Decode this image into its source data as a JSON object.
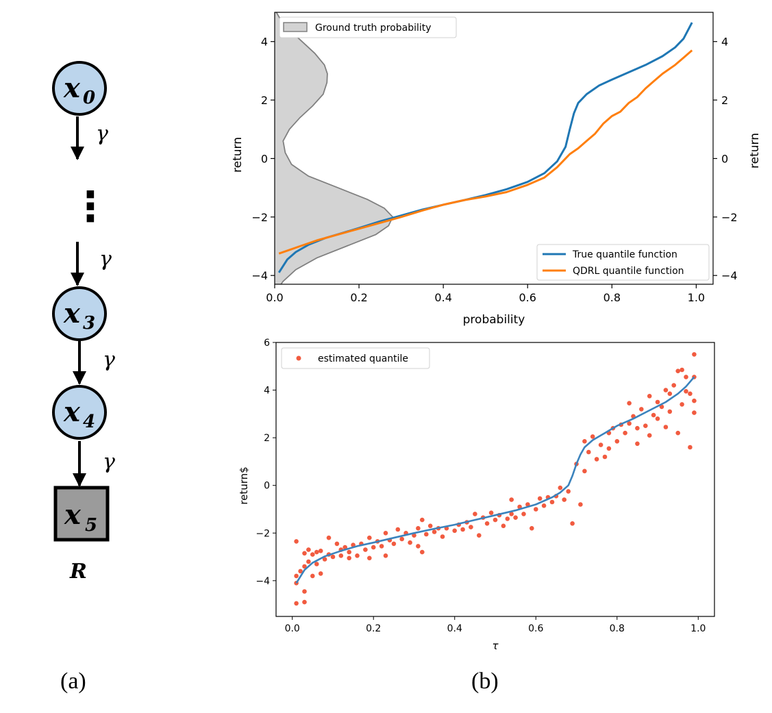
{
  "diagram": {
    "nodes": [
      {
        "var": "x",
        "sub": "0",
        "shape": "circle"
      },
      {
        "var": "x",
        "sub": "3",
        "shape": "circle"
      },
      {
        "var": "x",
        "sub": "4",
        "shape": "circle"
      },
      {
        "var": "x",
        "sub": "5",
        "shape": "square"
      }
    ],
    "edge_label": "γ",
    "ellipsis": "⋮",
    "terminal_label": "R",
    "node_fill": "#bcd5ec",
    "terminal_fill": "#9b9b9b"
  },
  "panel_labels": {
    "a": "(a)",
    "b": "(b)"
  },
  "chart_data": [
    {
      "type": "line",
      "xlabel": "probability",
      "ylabel": "return",
      "ylabel_right": "return",
      "xlim": [
        0.0,
        1.04
      ],
      "ylim": [
        -4.3,
        5.0
      ],
      "xticks": [
        "0.0",
        "0.2",
        "0.4",
        "0.6",
        "0.8",
        "1.0"
      ],
      "yticks": [
        "−4",
        "−2",
        "0",
        "2",
        "4"
      ],
      "yticks_right": [
        "−4",
        "−2",
        "0",
        "2",
        "4"
      ],
      "legend_position": "lower right",
      "series": [
        {
          "name": "True quantile function",
          "color": "#1f77b4",
          "x": [
            0.01,
            0.03,
            0.05,
            0.08,
            0.12,
            0.16,
            0.2,
            0.25,
            0.3,
            0.35,
            0.4,
            0.45,
            0.5,
            0.55,
            0.6,
            0.64,
            0.67,
            0.69,
            0.7,
            0.71,
            0.72,
            0.74,
            0.77,
            0.8,
            0.84,
            0.88,
            0.92,
            0.95,
            0.97,
            0.99
          ],
          "y": [
            -3.9,
            -3.45,
            -3.2,
            -2.95,
            -2.72,
            -2.55,
            -2.38,
            -2.15,
            -1.95,
            -1.75,
            -1.58,
            -1.42,
            -1.25,
            -1.05,
            -0.8,
            -0.5,
            -0.1,
            0.4,
            1.0,
            1.55,
            1.9,
            2.2,
            2.5,
            2.7,
            2.95,
            3.2,
            3.5,
            3.8,
            4.1,
            4.65
          ]
        },
        {
          "name": "QDRL quantile function",
          "color": "#ff7f0e",
          "x": [
            0.01,
            0.03,
            0.06,
            0.1,
            0.15,
            0.2,
            0.25,
            0.3,
            0.35,
            0.4,
            0.45,
            0.5,
            0.55,
            0.6,
            0.64,
            0.67,
            0.69,
            0.7,
            0.72,
            0.74,
            0.76,
            0.78,
            0.8,
            0.82,
            0.84,
            0.86,
            0.88,
            0.9,
            0.92,
            0.95,
            0.97,
            0.99
          ],
          "y": [
            -3.25,
            -3.15,
            -3.0,
            -2.8,
            -2.6,
            -2.4,
            -2.2,
            -2.0,
            -1.78,
            -1.58,
            -1.42,
            -1.3,
            -1.15,
            -0.9,
            -0.65,
            -0.3,
            0.0,
            0.15,
            0.35,
            0.6,
            0.85,
            1.2,
            1.45,
            1.6,
            1.9,
            2.1,
            2.4,
            2.65,
            2.9,
            3.2,
            3.45,
            3.7
          ]
        }
      ],
      "density": {
        "name": "Ground truth probability",
        "fill": "#d3d3d3",
        "stroke": "#808080",
        "y": [
          -4.6,
          -4.2,
          -3.8,
          -3.4,
          -3.0,
          -2.6,
          -2.3,
          -2.0,
          -1.7,
          -1.4,
          -1.0,
          -0.6,
          -0.2,
          0.2,
          0.6,
          1.0,
          1.4,
          1.8,
          2.2,
          2.6,
          2.9,
          3.2,
          3.6,
          4.0,
          4.4,
          4.8,
          5.0
        ],
        "x": [
          0.0,
          0.02,
          0.05,
          0.1,
          0.17,
          0.24,
          0.27,
          0.28,
          0.26,
          0.22,
          0.15,
          0.08,
          0.04,
          0.025,
          0.02,
          0.035,
          0.06,
          0.09,
          0.115,
          0.124,
          0.125,
          0.118,
          0.095,
          0.065,
          0.035,
          0.012,
          0.004
        ]
      }
    },
    {
      "type": "scatter",
      "xlabel": "τ",
      "ylabel": "return$",
      "xlim": [
        -0.04,
        1.04
      ],
      "ylim": [
        -5.5,
        6.0
      ],
      "xticks": [
        "0.0",
        "0.2",
        "0.4",
        "0.6",
        "0.8",
        "1.0"
      ],
      "yticks": [
        "−4",
        "−2",
        "0",
        "2",
        "4",
        "6"
      ],
      "legend_position": "upper left",
      "curve": {
        "color": "#3b83bd",
        "x": [
          0.01,
          0.03,
          0.05,
          0.08,
          0.12,
          0.16,
          0.2,
          0.25,
          0.3,
          0.35,
          0.4,
          0.45,
          0.5,
          0.55,
          0.6,
          0.64,
          0.66,
          0.68,
          0.69,
          0.7,
          0.71,
          0.72,
          0.74,
          0.77,
          0.8,
          0.84,
          0.88,
          0.92,
          0.95,
          0.97,
          0.99
        ],
        "y": [
          -4.1,
          -3.55,
          -3.25,
          -2.98,
          -2.75,
          -2.55,
          -2.4,
          -2.2,
          -2.0,
          -1.82,
          -1.65,
          -1.45,
          -1.25,
          -1.05,
          -0.8,
          -0.5,
          -0.3,
          0.0,
          0.4,
          0.9,
          1.3,
          1.6,
          1.9,
          2.2,
          2.5,
          2.8,
          3.15,
          3.5,
          3.85,
          4.15,
          4.55
        ]
      },
      "points": {
        "name": "estimated quantile",
        "color": "#f15b40",
        "values": [
          [
            0.01,
            -4.95
          ],
          [
            0.01,
            -4.1
          ],
          [
            0.01,
            -3.8
          ],
          [
            0.01,
            -2.35
          ],
          [
            0.02,
            -3.6
          ],
          [
            0.03,
            -4.45
          ],
          [
            0.03,
            -4.9
          ],
          [
            0.03,
            -3.4
          ],
          [
            0.03,
            -2.85
          ],
          [
            0.04,
            -3.2
          ],
          [
            0.04,
            -2.7
          ],
          [
            0.05,
            -3.8
          ],
          [
            0.05,
            -2.9
          ],
          [
            0.06,
            -3.3
          ],
          [
            0.06,
            -2.8
          ],
          [
            0.07,
            -3.7
          ],
          [
            0.07,
            -2.75
          ],
          [
            0.08,
            -3.1
          ],
          [
            0.09,
            -2.2
          ],
          [
            0.09,
            -2.9
          ],
          [
            0.1,
            -3.0
          ],
          [
            0.11,
            -2.45
          ],
          [
            0.12,
            -2.7
          ],
          [
            0.12,
            -2.95
          ],
          [
            0.13,
            -2.6
          ],
          [
            0.14,
            -3.05
          ],
          [
            0.14,
            -2.8
          ],
          [
            0.15,
            -2.5
          ],
          [
            0.16,
            -2.95
          ],
          [
            0.17,
            -2.45
          ],
          [
            0.18,
            -2.7
          ],
          [
            0.19,
            -2.2
          ],
          [
            0.19,
            -3.05
          ],
          [
            0.2,
            -2.6
          ],
          [
            0.21,
            -2.35
          ],
          [
            0.22,
            -2.55
          ],
          [
            0.23,
            -2.0
          ],
          [
            0.23,
            -2.95
          ],
          [
            0.24,
            -2.3
          ],
          [
            0.25,
            -2.45
          ],
          [
            0.26,
            -1.85
          ],
          [
            0.27,
            -2.25
          ],
          [
            0.28,
            -2.0
          ],
          [
            0.29,
            -2.4
          ],
          [
            0.3,
            -2.1
          ],
          [
            0.31,
            -2.55
          ],
          [
            0.31,
            -1.8
          ],
          [
            0.32,
            -1.45
          ],
          [
            0.32,
            -2.8
          ],
          [
            0.33,
            -2.05
          ],
          [
            0.34,
            -1.7
          ],
          [
            0.35,
            -1.95
          ],
          [
            0.36,
            -1.8
          ],
          [
            0.37,
            -2.15
          ],
          [
            0.38,
            -1.8
          ],
          [
            0.4,
            -1.9
          ],
          [
            0.41,
            -1.65
          ],
          [
            0.42,
            -1.85
          ],
          [
            0.43,
            -1.55
          ],
          [
            0.44,
            -1.75
          ],
          [
            0.45,
            -1.2
          ],
          [
            0.46,
            -2.1
          ],
          [
            0.47,
            -1.35
          ],
          [
            0.48,
            -1.6
          ],
          [
            0.49,
            -1.15
          ],
          [
            0.5,
            -1.45
          ],
          [
            0.51,
            -1.25
          ],
          [
            0.52,
            -1.7
          ],
          [
            0.53,
            -1.4
          ],
          [
            0.54,
            -0.6
          ],
          [
            0.54,
            -1.2
          ],
          [
            0.55,
            -1.35
          ],
          [
            0.56,
            -0.9
          ],
          [
            0.57,
            -1.2
          ],
          [
            0.58,
            -0.8
          ],
          [
            0.59,
            -1.8
          ],
          [
            0.6,
            -1.0
          ],
          [
            0.61,
            -0.55
          ],
          [
            0.62,
            -0.85
          ],
          [
            0.63,
            -0.5
          ],
          [
            0.64,
            -0.7
          ],
          [
            0.65,
            -0.45
          ],
          [
            0.66,
            -0.1
          ],
          [
            0.67,
            -0.6
          ],
          [
            0.68,
            -0.25
          ],
          [
            0.69,
            -1.6
          ],
          [
            0.7,
            0.9
          ],
          [
            0.71,
            -0.8
          ],
          [
            0.72,
            1.85
          ],
          [
            0.72,
            0.6
          ],
          [
            0.73,
            1.4
          ],
          [
            0.74,
            2.05
          ],
          [
            0.75,
            1.1
          ],
          [
            0.76,
            1.7
          ],
          [
            0.77,
            1.2
          ],
          [
            0.78,
            2.2
          ],
          [
            0.78,
            1.55
          ],
          [
            0.79,
            2.4
          ],
          [
            0.8,
            1.85
          ],
          [
            0.81,
            2.55
          ],
          [
            0.82,
            2.2
          ],
          [
            0.83,
            3.45
          ],
          [
            0.83,
            2.6
          ],
          [
            0.84,
            2.9
          ],
          [
            0.85,
            1.75
          ],
          [
            0.85,
            2.4
          ],
          [
            0.86,
            3.2
          ],
          [
            0.87,
            2.5
          ],
          [
            0.88,
            3.75
          ],
          [
            0.88,
            2.1
          ],
          [
            0.89,
            2.95
          ],
          [
            0.9,
            3.5
          ],
          [
            0.9,
            2.8
          ],
          [
            0.91,
            3.3
          ],
          [
            0.92,
            4.0
          ],
          [
            0.92,
            2.45
          ],
          [
            0.93,
            3.85
          ],
          [
            0.93,
            3.1
          ],
          [
            0.94,
            4.2
          ],
          [
            0.95,
            2.2
          ],
          [
            0.95,
            4.8
          ],
          [
            0.96,
            3.4
          ],
          [
            0.96,
            4.85
          ],
          [
            0.97,
            3.95
          ],
          [
            0.97,
            4.55
          ],
          [
            0.98,
            1.6
          ],
          [
            0.98,
            3.85
          ],
          [
            0.99,
            5.5
          ],
          [
            0.99,
            3.05
          ],
          [
            0.99,
            3.55
          ],
          [
            0.99,
            4.55
          ]
        ]
      }
    }
  ]
}
